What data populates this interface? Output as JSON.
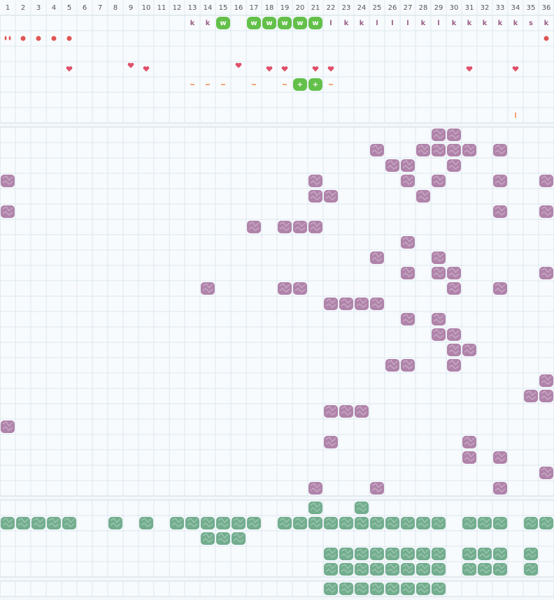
{
  "columns": [
    1,
    2,
    3,
    4,
    5,
    6,
    7,
    8,
    9,
    10,
    11,
    12,
    13,
    14,
    15,
    16,
    17,
    18,
    19,
    20,
    21,
    22,
    23,
    24,
    25,
    26,
    27,
    28,
    29,
    30,
    31,
    32,
    33,
    34,
    35,
    36
  ],
  "top_rows": [
    {
      "letters": [
        {
          "col": 13,
          "text": "k"
        },
        {
          "col": 14,
          "text": "k"
        },
        {
          "col": 22,
          "text": "l"
        },
        {
          "col": 23,
          "text": "k"
        },
        {
          "col": 24,
          "text": "k"
        },
        {
          "col": 25,
          "text": "l"
        },
        {
          "col": 26,
          "text": "l"
        },
        {
          "col": 27,
          "text": "l"
        },
        {
          "col": 28,
          "text": "k"
        },
        {
          "col": 29,
          "text": "l"
        },
        {
          "col": 30,
          "text": "k"
        },
        {
          "col": 31,
          "text": "k"
        },
        {
          "col": 32,
          "text": "k"
        },
        {
          "col": 33,
          "text": "k"
        },
        {
          "col": 34,
          "text": "k"
        },
        {
          "col": 35,
          "text": "s"
        },
        {
          "col": 36,
          "text": "k"
        }
      ],
      "badges": [
        {
          "col": 15,
          "text": "w"
        },
        {
          "col": 17,
          "text": "w"
        },
        {
          "col": 18,
          "text": "w"
        },
        {
          "col": 19,
          "text": "w"
        },
        {
          "col": 20,
          "text": "w"
        },
        {
          "col": 21,
          "text": "w"
        }
      ]
    },
    {
      "drops": [
        1
      ],
      "dots": [
        2,
        3,
        4,
        5,
        36
      ]
    },
    {},
    {
      "hearts": [
        5,
        9,
        10,
        16,
        18,
        19,
        21,
        22,
        31,
        34
      ]
    },
    {
      "dashes": [
        13,
        14,
        15,
        17,
        19,
        22
      ],
      "badges": [
        {
          "col": 20,
          "text": "+"
        },
        {
          "col": 21,
          "text": "+"
        }
      ]
    },
    {},
    {
      "ticks": [
        34
      ]
    }
  ],
  "purple_rows": [
    [
      29,
      30
    ],
    [
      25,
      28,
      29,
      30,
      31,
      33
    ],
    [
      26,
      27,
      30
    ],
    [
      1,
      21,
      27,
      29,
      33,
      36
    ],
    [
      21,
      22,
      28
    ],
    [
      1,
      33,
      36
    ],
    [
      17,
      19,
      20,
      21
    ],
    [
      27
    ],
    [
      25,
      29
    ],
    [
      27,
      29,
      30,
      36
    ],
    [
      14,
      19,
      20,
      30,
      33
    ],
    [
      22,
      23,
      24,
      25
    ],
    [
      27,
      29
    ],
    [
      29,
      30
    ],
    [
      30,
      31
    ],
    [
      26,
      27,
      30
    ],
    [
      36
    ],
    [
      35,
      36
    ],
    [
      22,
      23,
      24
    ],
    [
      1
    ],
    [
      22,
      31
    ],
    [
      31,
      33
    ],
    [
      36
    ],
    [
      21,
      25,
      33
    ]
  ],
  "green_rows": [
    [
      21,
      24
    ],
    [
      1,
      2,
      3,
      4,
      5,
      8,
      10,
      12,
      13,
      14,
      15,
      16,
      17,
      19,
      20,
      21,
      22,
      23,
      24,
      25,
      26,
      27,
      28,
      29,
      31,
      32,
      33,
      35,
      36
    ],
    [
      14,
      15,
      16
    ],
    [
      22,
      23,
      24,
      25,
      26,
      27,
      28,
      29,
      31,
      32,
      33,
      35
    ],
    [
      22,
      23,
      24,
      25,
      26,
      27,
      28,
      29,
      31,
      32,
      33,
      35
    ]
  ],
  "bottom_rows": [
    [
      22,
      23,
      24,
      25,
      26,
      27,
      28,
      29
    ]
  ]
}
